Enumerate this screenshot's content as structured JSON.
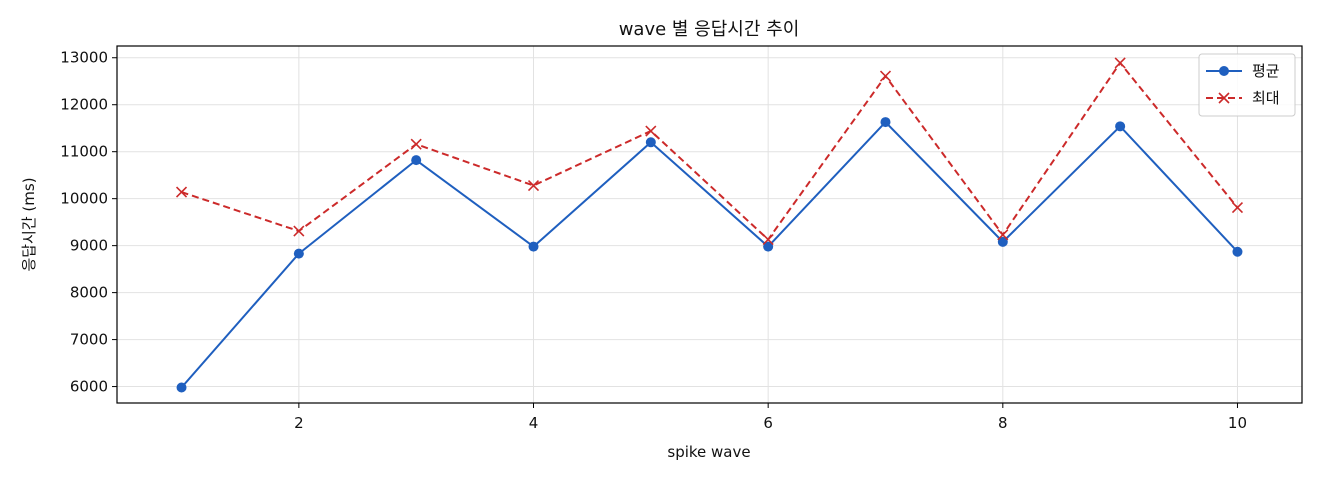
{
  "chart_data": {
    "type": "line",
    "title": "wave 별 응답시간 추이",
    "xlabel": "spike wave",
    "ylabel": "응답시간 (ms)",
    "x": [
      1,
      2,
      3,
      4,
      5,
      6,
      7,
      8,
      9,
      10
    ],
    "xticks": [
      2,
      4,
      6,
      8,
      10
    ],
    "yticks": [
      6000,
      7000,
      8000,
      9000,
      10000,
      11000,
      12000,
      13000
    ],
    "xlim": [
      0.45,
      10.55
    ],
    "ylim": [
      5650,
      13250
    ],
    "grid": true,
    "legend_position": "top-right",
    "series": [
      {
        "name": "평균",
        "color": "#1f5fbf",
        "marker": "circle",
        "line_style": "solid",
        "values": [
          5980,
          8830,
          10820,
          8980,
          11200,
          8980,
          11630,
          9080,
          11540,
          8870
        ]
      },
      {
        "name": "최대",
        "color": "#cc2a2a",
        "marker": "x",
        "line_style": "dashed",
        "values": [
          10140,
          9310,
          11160,
          10280,
          11440,
          9130,
          12610,
          9230,
          12890,
          9810
        ]
      }
    ]
  }
}
